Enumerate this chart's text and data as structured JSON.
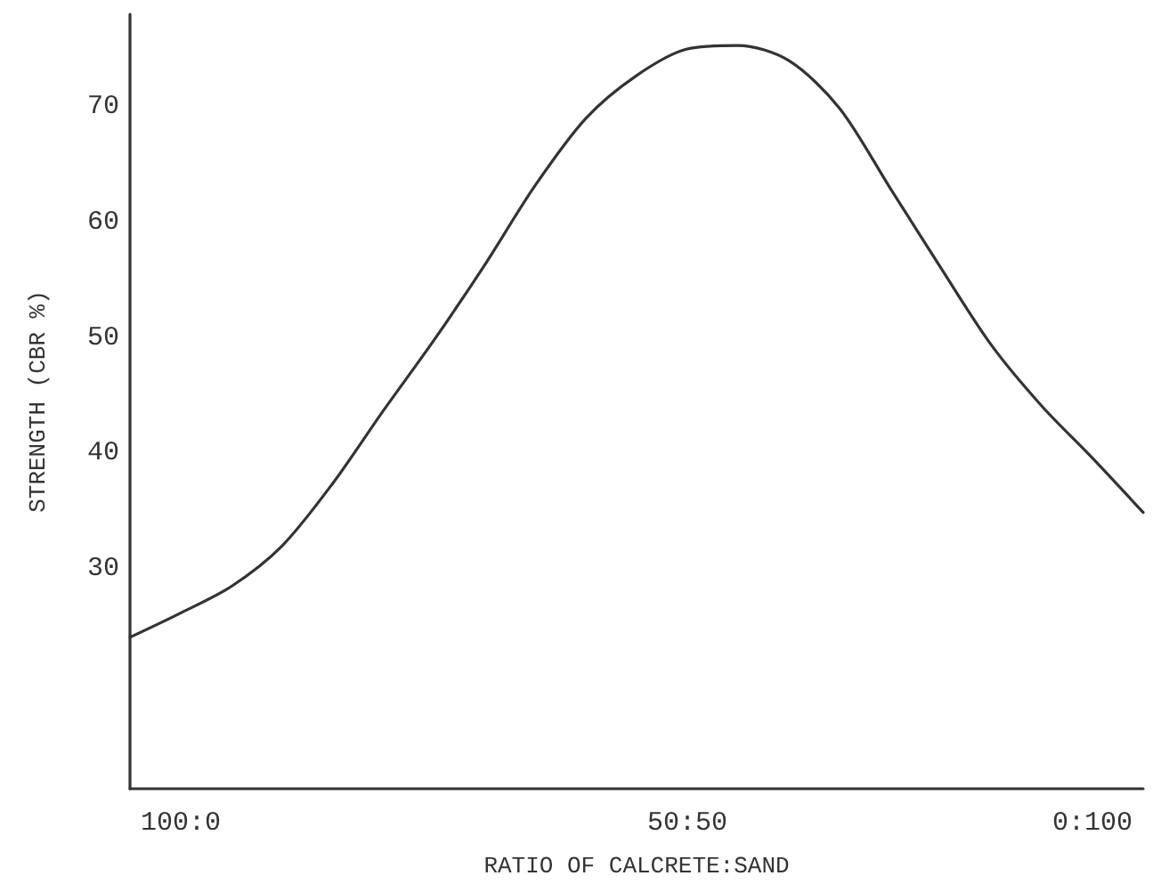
{
  "chart_data": {
    "type": "line",
    "xlabel": "RATIO OF CALCRETE:SAND",
    "ylabel": "STRENGTH (CBR %)",
    "categories": [
      null,
      "100:0",
      null,
      null,
      null,
      null,
      null,
      null,
      null,
      null,
      null,
      "50:50",
      null,
      null,
      null,
      null,
      null,
      null,
      null,
      "0:100",
      null
    ],
    "series": [
      {
        "color": "#333333",
        "values": [
          24.1,
          26.2,
          28.5,
          32.0,
          37.4,
          43.7,
          49.8,
          56.3,
          63.2,
          69.0,
          72.7,
          75.0,
          75.3,
          74.0,
          69.9,
          63.0,
          56.1,
          49.4,
          44.1,
          39.6,
          34.9
        ]
      }
    ],
    "ylim": [
      11,
      78
    ],
    "yticks": [
      30,
      40,
      50,
      60,
      70
    ],
    "grid": false,
    "marker": "none",
    "line_style": "solid"
  }
}
